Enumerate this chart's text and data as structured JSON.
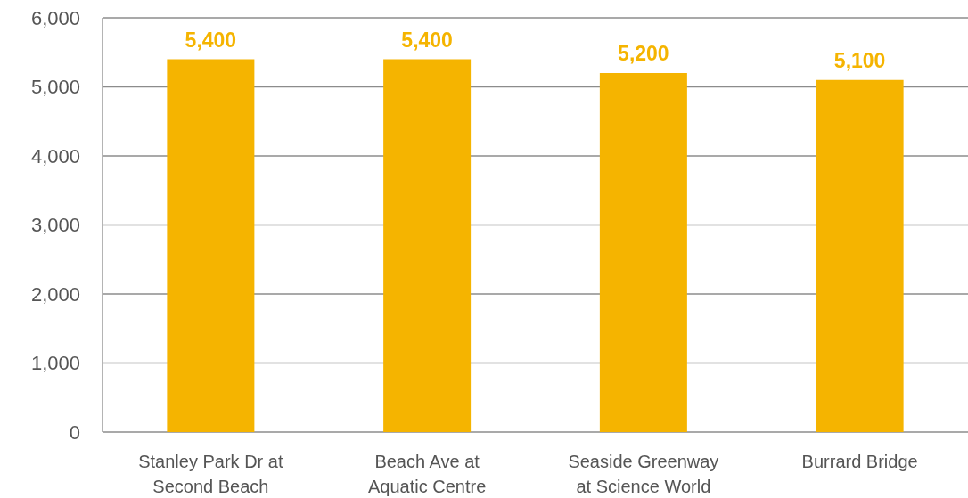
{
  "chart_data": {
    "type": "bar",
    "categories": [
      "Stanley Park Dr at Second Beach",
      "Beach Ave at Aquatic Centre",
      "Seaside Greenway at Science World",
      "Burrard Bridge"
    ],
    "values": [
      5400,
      5400,
      5200,
      5100
    ],
    "color": "#f5b400",
    "ylim": [
      0,
      6000
    ],
    "yticks": [
      {
        "value": 0,
        "label": "0"
      },
      {
        "value": 1000,
        "label": "1,000"
      },
      {
        "value": 2000,
        "label": "2,000"
      },
      {
        "value": 3000,
        "label": "3,000"
      },
      {
        "value": 4000,
        "label": "4,000"
      },
      {
        "value": 5000,
        "label": "5,000"
      },
      {
        "value": 6000,
        "label": "6,000"
      }
    ],
    "grid": "y",
    "value_labels": [
      "5,400",
      "5,400",
      "5,200",
      "5,100"
    ]
  }
}
